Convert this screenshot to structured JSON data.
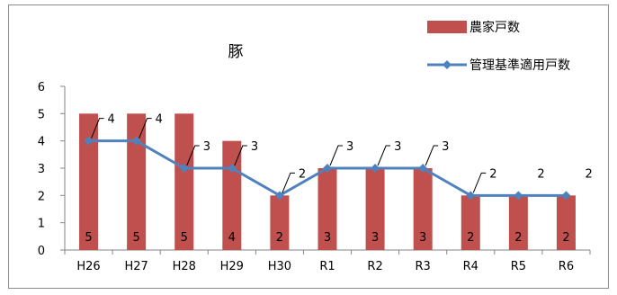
{
  "chart_data": {
    "type": "bar",
    "title": "豚",
    "xlabel": "",
    "ylabel": "",
    "ylim": [
      0,
      6
    ],
    "yticks": [
      0,
      1,
      2,
      3,
      4,
      5,
      6
    ],
    "grid": false,
    "legend_position": "top-right",
    "categories": [
      "H26",
      "H27",
      "H28",
      "H29",
      "H30",
      "R1",
      "R2",
      "R3",
      "R4",
      "R5",
      "R6"
    ],
    "series": [
      {
        "name": "農家戸数",
        "type": "bar",
        "color": "#c0504d",
        "values": [
          5,
          5,
          5,
          4,
          2,
          3,
          3,
          3,
          2,
          2,
          2
        ]
      },
      {
        "name": "管理基準適用戸数",
        "type": "line",
        "color": "#4f81bd",
        "marker": "diamond",
        "values": [
          4,
          4,
          3,
          3,
          2,
          3,
          3,
          3,
          2,
          2,
          2
        ]
      }
    ]
  }
}
